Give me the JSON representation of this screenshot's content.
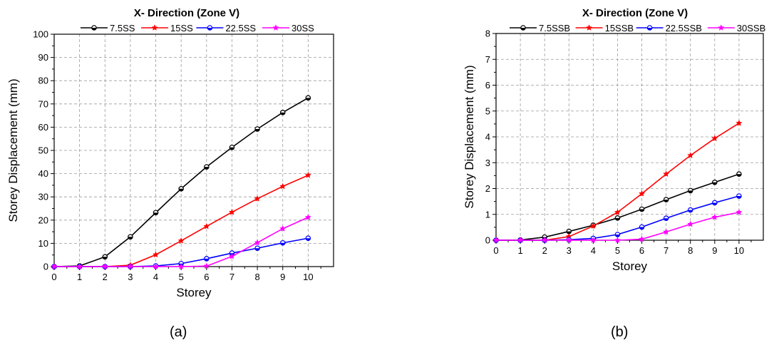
{
  "captions": {
    "a": "(a)",
    "b": "(b)"
  },
  "chart_data": [
    {
      "type": "line",
      "title": "X- Direction (Zone V)",
      "xlabel": "Storey",
      "ylabel": "Storey Displacement (mm)",
      "xlim": [
        0,
        11
      ],
      "ylim": [
        0,
        100
      ],
      "xticks": [
        0,
        1,
        2,
        3,
        4,
        5,
        6,
        7,
        8,
        9,
        10
      ],
      "yticks": [
        0,
        10,
        20,
        30,
        40,
        50,
        60,
        70,
        80,
        90,
        100
      ],
      "grid": true,
      "legend": "top",
      "x": [
        0,
        1,
        2,
        3,
        4,
        5,
        6,
        7,
        8,
        9,
        10
      ],
      "series": [
        {
          "name": "7.5SS",
          "color": "#000000",
          "marker": "half-circle",
          "values": [
            0,
            0.3,
            4.2,
            12.8,
            23.2,
            33.5,
            42.9,
            51.3,
            59.2,
            66.3,
            72.6
          ]
        },
        {
          "name": "15SS",
          "color": "#ff0000",
          "marker": "star",
          "values": [
            0,
            0,
            0,
            0.6,
            5.1,
            11.1,
            17.3,
            23.4,
            29.2,
            34.5,
            39.3
          ]
        },
        {
          "name": "22.5SS",
          "color": "#0000ff",
          "marker": "half-circle",
          "values": [
            0,
            0,
            0,
            0,
            0.3,
            1.3,
            3.4,
            5.8,
            7.9,
            10.2,
            12.2
          ]
        },
        {
          "name": "30SS",
          "color": "#ff00ff",
          "marker": "star",
          "values": [
            0,
            0,
            0,
            0,
            0,
            0,
            0.2,
            4.4,
            10.3,
            16.3,
            21.2
          ]
        }
      ]
    },
    {
      "type": "line",
      "title": "X- Direction (Zone V)",
      "xlabel": "Storey",
      "ylabel": "Storey Displacement (mm)",
      "xlim": [
        0,
        11
      ],
      "ylim": [
        0,
        8
      ],
      "xticks": [
        0,
        1,
        2,
        3,
        4,
        5,
        6,
        7,
        8,
        9,
        10
      ],
      "yticks": [
        0,
        1,
        2,
        3,
        4,
        5,
        6,
        7,
        8
      ],
      "grid": true,
      "legend": "top",
      "x": [
        0,
        1,
        2,
        3,
        4,
        5,
        6,
        7,
        8,
        9,
        10
      ],
      "series": [
        {
          "name": "7.5SSB",
          "color": "#000000",
          "marker": "half-circle",
          "values": [
            0,
            0.01,
            0.12,
            0.34,
            0.58,
            0.86,
            1.2,
            1.57,
            1.92,
            2.24,
            2.56
          ]
        },
        {
          "name": "15SSB",
          "color": "#ff0000",
          "marker": "star",
          "values": [
            0,
            0,
            0,
            0.14,
            0.55,
            1.08,
            1.8,
            2.56,
            3.28,
            3.94,
            4.53
          ]
        },
        {
          "name": "22.5SSB",
          "color": "#0000ff",
          "marker": "half-circle",
          "values": [
            0,
            0,
            0,
            0.02,
            0.07,
            0.22,
            0.51,
            0.85,
            1.17,
            1.45,
            1.71
          ]
        },
        {
          "name": "30SSB",
          "color": "#ff00ff",
          "marker": "star",
          "values": [
            0,
            0,
            0,
            0,
            0,
            0,
            0.04,
            0.32,
            0.62,
            0.89,
            1.08
          ]
        }
      ]
    }
  ]
}
